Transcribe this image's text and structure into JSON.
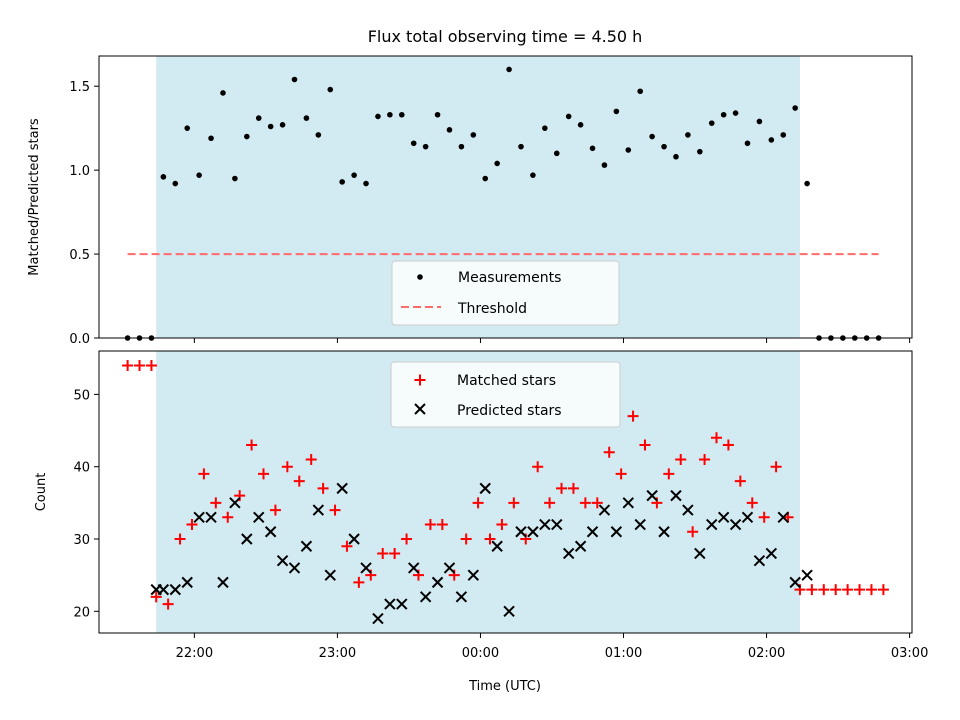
{
  "title": "Flux total observing time = 4.50 h",
  "colors": {
    "band": "#add8e6",
    "measurement": "#000000",
    "threshold": "#ff6b6b",
    "matched": "#ff0000",
    "predicted": "#000000"
  },
  "chart_data": [
    {
      "type": "scatter",
      "ylabel": "Matched/Predicted stars",
      "ylim": [
        0,
        1.68
      ],
      "yticks": [
        "0.0",
        "0.5",
        "1.0",
        "1.5"
      ],
      "ytick_values": [
        0,
        0.5,
        1.0,
        1.5
      ],
      "observing_window_x": [
        "21:44",
        "02:14"
      ],
      "legend": {
        "placement": "lower-center",
        "entries": [
          "Measurements",
          "Threshold"
        ]
      },
      "series": [
        {
          "name": "Measurements",
          "marker": "dot",
          "x": [
            "21:32",
            "21:37",
            "21:42",
            "21:47",
            "21:52",
            "21:57",
            "22:02",
            "22:07",
            "22:12",
            "22:17",
            "22:22",
            "22:27",
            "22:32",
            "22:37",
            "22:42",
            "22:47",
            "22:52",
            "22:57",
            "23:02",
            "23:07",
            "23:12",
            "23:17",
            "23:22",
            "23:27",
            "23:32",
            "23:37",
            "23:42",
            "23:47",
            "23:52",
            "23:57",
            "00:02",
            "00:07",
            "00:12",
            "00:17",
            "00:22",
            "00:27",
            "00:32",
            "00:37",
            "00:42",
            "00:47",
            "00:52",
            "00:57",
            "01:02",
            "01:07",
            "01:12",
            "01:17",
            "01:22",
            "01:27",
            "01:32",
            "01:37",
            "01:42",
            "01:47",
            "01:52",
            "01:57",
            "02:02",
            "02:07",
            "02:12",
            "02:17",
            "02:22",
            "02:27",
            "02:32",
            "02:37",
            "02:42",
            "02:47"
          ],
          "y": [
            0,
            0,
            0,
            0.96,
            0.92,
            1.25,
            0.97,
            1.19,
            1.46,
            0.95,
            1.2,
            1.31,
            1.26,
            1.27,
            1.54,
            1.31,
            1.21,
            1.48,
            0.93,
            0.97,
            0.92,
            1.32,
            1.33,
            1.33,
            1.16,
            1.14,
            1.33,
            1.24,
            1.14,
            1.21,
            0.95,
            1.04,
            1.6,
            1.14,
            0.97,
            1.25,
            1.1,
            1.32,
            1.27,
            1.13,
            1.03,
            1.35,
            1.12,
            1.47,
            1.2,
            1.14,
            1.08,
            1.21,
            1.11,
            1.28,
            1.33,
            1.34,
            1.16,
            1.29,
            1.18,
            1.21,
            1.37,
            0.92,
            0,
            0,
            0,
            0,
            0,
            0
          ]
        },
        {
          "name": "Threshold",
          "marker": "dashed-line",
          "x": [
            "21:32",
            "02:47"
          ],
          "y": [
            0.5,
            0.5
          ]
        }
      ]
    },
    {
      "type": "scatter",
      "xlabel": "Time (UTC)",
      "ylabel": "Count",
      "ylim": [
        17,
        56
      ],
      "xlim": [
        "21:20",
        "03:01"
      ],
      "yticks": [
        "20",
        "30",
        "40",
        "50"
      ],
      "ytick_values": [
        20,
        30,
        40,
        50
      ],
      "xticks": [
        "22:00",
        "23:00",
        "00:00",
        "01:00",
        "02:00",
        "03:00"
      ],
      "xtick_values": [
        "22:00",
        "23:00",
        "00:00",
        "01:00",
        "02:00",
        "03:00"
      ],
      "observing_window_x": [
        "21:44",
        "02:14"
      ],
      "legend": {
        "placement": "upper-center",
        "entries": [
          "Matched stars",
          "Predicted stars"
        ]
      },
      "series": [
        {
          "name": "Matched stars",
          "marker": "plus",
          "x": [
            "21:32",
            "21:37",
            "21:42",
            "21:44",
            "21:49",
            "21:54",
            "21:59",
            "22:04",
            "22:09",
            "22:14",
            "22:19",
            "22:24",
            "22:29",
            "22:34",
            "22:39",
            "22:44",
            "22:49",
            "22:54",
            "22:59",
            "23:04",
            "23:09",
            "23:14",
            "23:19",
            "23:24",
            "23:29",
            "23:34",
            "23:39",
            "23:44",
            "23:49",
            "23:54",
            "23:59",
            "00:04",
            "00:09",
            "00:14",
            "00:19",
            "00:24",
            "00:29",
            "00:34",
            "00:39",
            "00:44",
            "00:49",
            "00:54",
            "00:59",
            "01:04",
            "01:09",
            "01:14",
            "01:19",
            "01:24",
            "01:29",
            "01:34",
            "01:39",
            "01:44",
            "01:49",
            "01:54",
            "01:59",
            "02:04",
            "02:09",
            "02:14",
            "02:19",
            "02:24",
            "02:29",
            "02:34",
            "02:39",
            "02:44",
            "02:49"
          ],
          "y": [
            54,
            54,
            54,
            22,
            21,
            30,
            32,
            39,
            35,
            33,
            36,
            43,
            39,
            34,
            40,
            38,
            41,
            37,
            34,
            29,
            24,
            25,
            28,
            28,
            30,
            25,
            32,
            32,
            25,
            30,
            35,
            30,
            32,
            35,
            30,
            40,
            35,
            37,
            37,
            35,
            35,
            42,
            39,
            47,
            43,
            35,
            39,
            41,
            31,
            41,
            44,
            43,
            38,
            35,
            33,
            40,
            33,
            23,
            23,
            23,
            23,
            23,
            23,
            23,
            23
          ]
        },
        {
          "name": "Predicted stars",
          "marker": "x",
          "x": [
            "21:44",
            "21:47",
            "21:52",
            "21:57",
            "22:02",
            "22:07",
            "22:12",
            "22:17",
            "22:22",
            "22:27",
            "22:32",
            "22:37",
            "22:42",
            "22:47",
            "22:52",
            "22:57",
            "23:02",
            "23:07",
            "23:12",
            "23:17",
            "23:22",
            "23:27",
            "23:32",
            "23:37",
            "23:42",
            "23:47",
            "23:52",
            "23:57",
            "00:02",
            "00:07",
            "00:12",
            "00:17",
            "00:22",
            "00:27",
            "00:32",
            "00:37",
            "00:42",
            "00:47",
            "00:52",
            "00:57",
            "01:02",
            "01:07",
            "01:12",
            "01:17",
            "01:22",
            "01:27",
            "01:32",
            "01:37",
            "01:42",
            "01:47",
            "01:52",
            "01:57",
            "02:02",
            "02:07",
            "02:12",
            "02:17"
          ],
          "y": [
            23,
            23,
            23,
            24,
            33,
            33,
            24,
            35,
            30,
            33,
            31,
            27,
            26,
            29,
            34,
            25,
            37,
            30,
            26,
            19,
            21,
            21,
            26,
            22,
            24,
            26,
            22,
            25,
            37,
            29,
            20,
            31,
            31,
            32,
            32,
            28,
            29,
            31,
            34,
            31,
            35,
            32,
            36,
            31,
            36,
            34,
            28,
            32,
            33,
            32,
            33,
            27,
            28,
            33,
            24,
            25
          ]
        }
      ]
    }
  ]
}
